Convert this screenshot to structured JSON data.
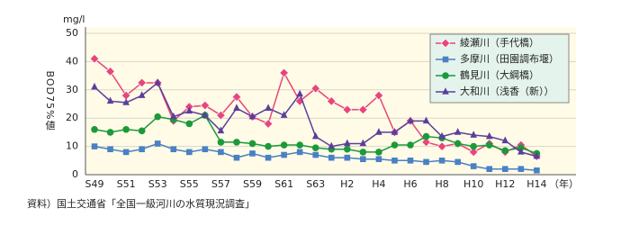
{
  "chart_data": {
    "type": "line",
    "y_unit": "mg/l",
    "y_label": "BOD75%値",
    "x_label": "（年）",
    "source": "資料）国土交通省「全国一級河川の水質現況調査」",
    "categories": [
      "S49",
      null,
      "S51",
      null,
      "S53",
      null,
      "S55",
      null,
      "S57",
      null,
      "S59",
      null,
      "S61",
      null,
      "S63",
      null,
      "H2",
      null,
      "H4",
      null,
      "H6",
      null,
      "H8",
      null,
      "H10",
      null,
      "H12",
      null,
      "H14"
    ],
    "ylim": [
      0,
      50
    ],
    "yticks": [
      0,
      10,
      20,
      30,
      40,
      50
    ],
    "grid": true,
    "legend": "top-right",
    "series": [
      {
        "name": "綾瀬川（手代橋）",
        "color": "#e8457a",
        "marker": "diamond",
        "values": [
          41,
          36.5,
          28,
          32.5,
          32.5,
          19,
          24,
          24.5,
          21,
          27.5,
          20.5,
          18,
          36,
          26,
          30.5,
          26,
          23,
          23,
          28,
          15,
          19,
          11.5,
          10,
          11,
          8,
          11,
          8,
          10.5,
          6.5
        ]
      },
      {
        "name": "多摩川（田園調布堰）",
        "color": "#4a80c4",
        "marker": "square",
        "values": [
          10,
          9,
          8,
          9,
          11,
          9,
          8,
          9,
          8,
          6,
          7.5,
          6,
          7,
          8,
          7,
          6,
          6,
          5.5,
          5.5,
          5,
          5,
          4.5,
          5,
          4.5,
          3,
          2,
          2,
          2,
          1.5
        ]
      },
      {
        "name": "鶴見川（大綱橋）",
        "color": "#1a9a3a",
        "marker": "circle",
        "values": [
          16,
          15,
          16,
          15.5,
          20.5,
          19.5,
          18,
          21,
          11.5,
          11.5,
          11,
          10,
          10.5,
          10.5,
          9.5,
          9,
          9,
          8,
          8,
          10.5,
          10.5,
          13.5,
          13,
          11,
          10,
          10.5,
          8.5,
          9.5,
          7.5
        ]
      },
      {
        "name": "大和川（浅香（新））",
        "color": "#5a3f9c",
        "marker": "triangle",
        "values": [
          31,
          26,
          25.5,
          28,
          32.5,
          20.5,
          22.5,
          21,
          15.5,
          23.5,
          20.5,
          23.5,
          21,
          28.5,
          13.5,
          10,
          11,
          11,
          15,
          15,
          19,
          19,
          13.5,
          15,
          14,
          13.5,
          12,
          8,
          6.5
        ]
      }
    ]
  }
}
